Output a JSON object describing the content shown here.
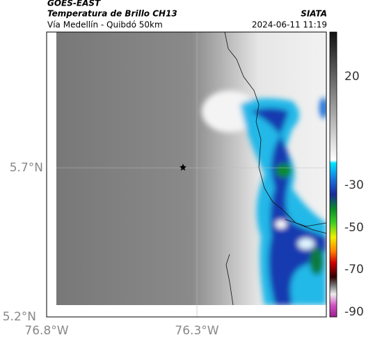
{
  "header": {
    "source": "GOES-EAST",
    "title": "Temperatura de Brillo CH13",
    "subtitle": "Vía Medellín - Quibdó 50km",
    "organization": "SIATA",
    "datetime": "2024-06-11 11:19"
  },
  "map": {
    "lat_labels": [
      "5.7°N",
      "5.2°N"
    ],
    "lon_labels": [
      "76.8°W",
      "76.3°W"
    ]
  },
  "colorbar": {
    "ticks": [
      20,
      -30,
      -50,
      -70,
      -90
    ]
  }
}
